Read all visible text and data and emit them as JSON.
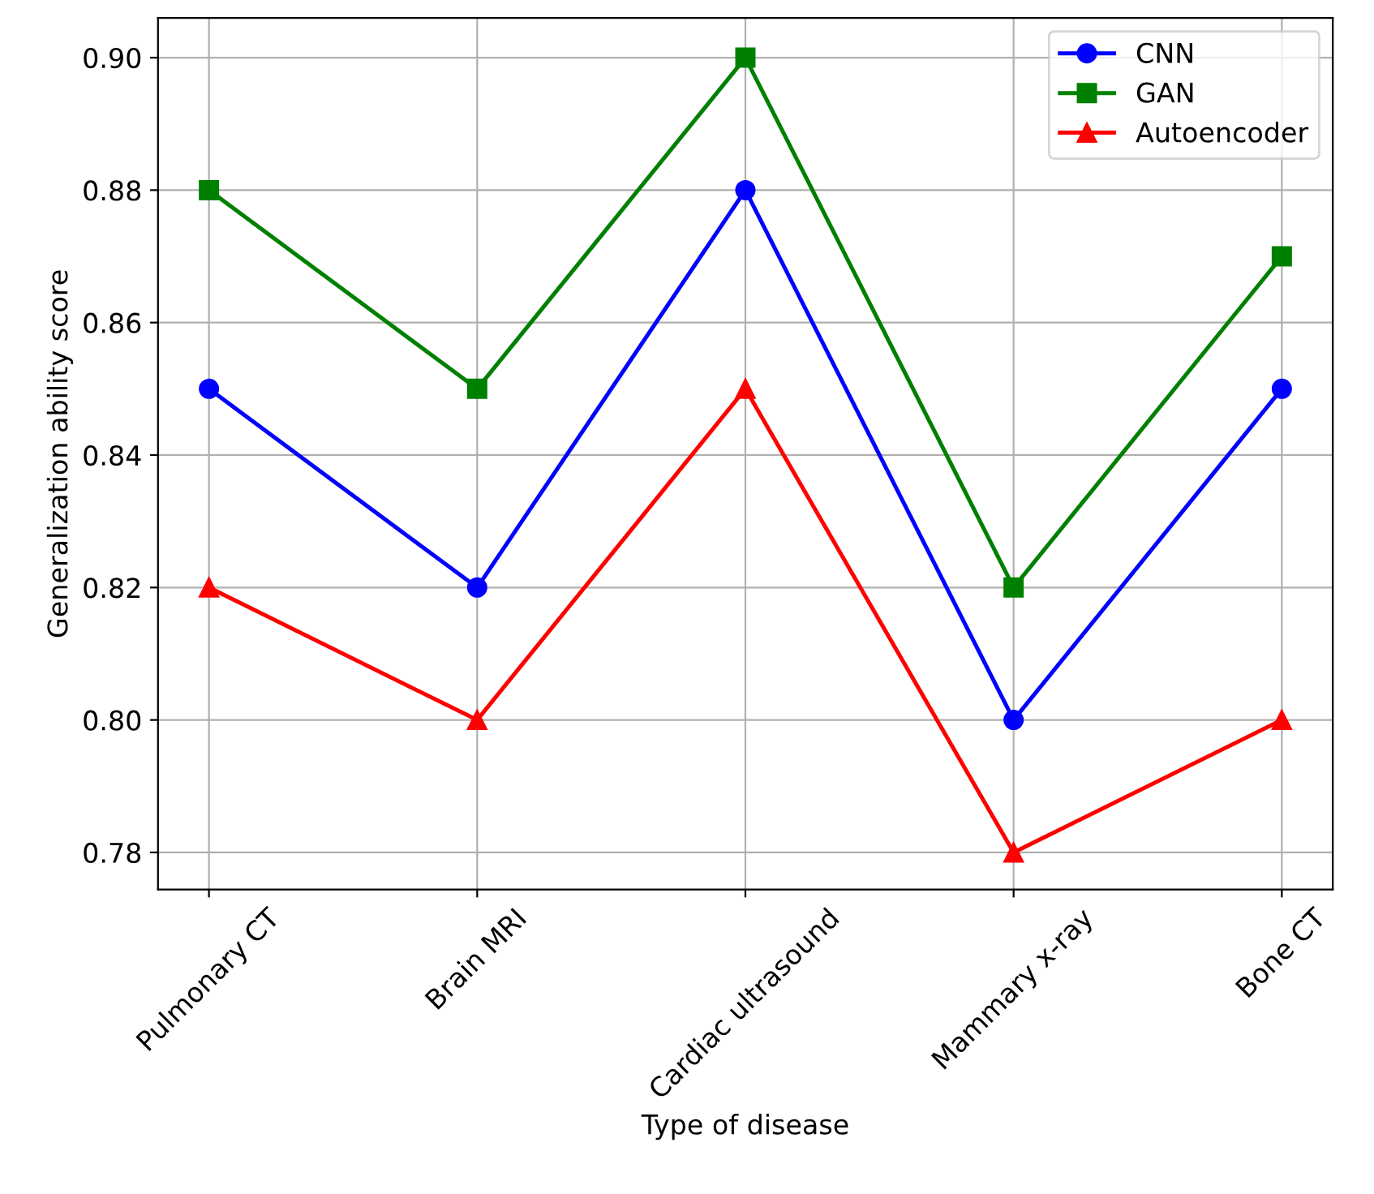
{
  "chart_data": {
    "type": "line",
    "xlabel": "Type of disease",
    "ylabel": "Generalization ability score",
    "categories": [
      "Pulmonary CT",
      "Brain MRI",
      "Cardiac ultrasound",
      "Mammary x-ray",
      "Bone CT"
    ],
    "series": [
      {
        "name": "CNN",
        "color": "#0000ff",
        "marker": "circle",
        "values": [
          0.85,
          0.82,
          0.88,
          0.8,
          0.85
        ]
      },
      {
        "name": "GAN",
        "color": "#008000",
        "marker": "square",
        "values": [
          0.88,
          0.85,
          0.9,
          0.82,
          0.87
        ]
      },
      {
        "name": "Autoencoder",
        "color": "#ff0000",
        "marker": "triangle",
        "values": [
          0.82,
          0.8,
          0.85,
          0.78,
          0.8
        ]
      }
    ],
    "ylim": [
      0.7744,
      0.906
    ],
    "yticks": [
      {
        "value": 0.78,
        "label": "0.78"
      },
      {
        "value": 0.8,
        "label": "0.80"
      },
      {
        "value": 0.82,
        "label": "0.82"
      },
      {
        "value": 0.84,
        "label": "0.84"
      },
      {
        "value": 0.86,
        "label": "0.86"
      },
      {
        "value": 0.88,
        "label": "0.88"
      },
      {
        "value": 0.9,
        "label": "0.90"
      }
    ],
    "grid": true,
    "legend": "top right",
    "line_style": "solid"
  }
}
